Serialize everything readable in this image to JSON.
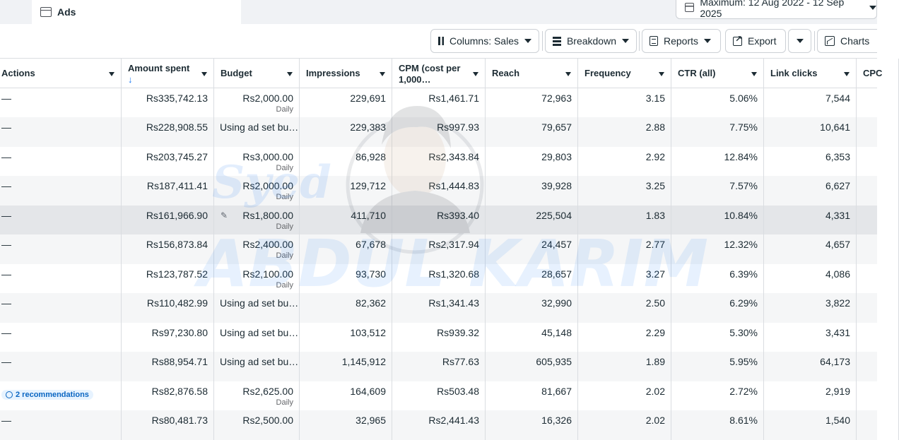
{
  "tab": {
    "label": "Ads"
  },
  "date_range": {
    "label": "Maximum: 12 Aug 2022 - 12 Sep 2025"
  },
  "toolbar": {
    "columns": "Columns: Sales",
    "breakdown": "Breakdown",
    "reports": "Reports",
    "export": "Export",
    "charts": "Charts"
  },
  "columns": [
    {
      "key": "actions",
      "label": "Actions"
    },
    {
      "key": "amount_spent",
      "label": "Amount spent",
      "sort": "↓"
    },
    {
      "key": "budget",
      "label": "Budget"
    },
    {
      "key": "impressions",
      "label": "Impressions"
    },
    {
      "key": "cpm",
      "label": "CPM (cost per",
      "label2": "1,000…"
    },
    {
      "key": "reach",
      "label": "Reach"
    },
    {
      "key": "frequency",
      "label": "Frequency"
    },
    {
      "key": "ctr",
      "label": "CTR (all)"
    },
    {
      "key": "link_clicks",
      "label": "Link clicks"
    },
    {
      "key": "cpc",
      "label": "CPC"
    }
  ],
  "rows": [
    {
      "actions": "—",
      "amount_spent": "Rs335,742.13",
      "budget": "Rs2,000.00",
      "budget_sub": "Daily",
      "impressions": "229,691",
      "cpm": "Rs1,461.71",
      "reach": "72,963",
      "frequency": "3.15",
      "ctr": "5.06%",
      "link_clicks": "7,544"
    },
    {
      "actions": "—",
      "amount_spent": "Rs228,908.55",
      "budget": "Using ad set bu…",
      "budget_sub": "",
      "impressions": "229,383",
      "cpm": "Rs997.93",
      "reach": "79,657",
      "frequency": "2.88",
      "ctr": "7.75%",
      "link_clicks": "10,641"
    },
    {
      "actions": "—",
      "amount_spent": "Rs203,745.27",
      "budget": "Rs3,000.00",
      "budget_sub": "Daily",
      "impressions": "86,928",
      "cpm": "Rs2,343.84",
      "reach": "29,803",
      "frequency": "2.92",
      "ctr": "12.84%",
      "link_clicks": "6,353"
    },
    {
      "actions": "—",
      "amount_spent": "Rs187,411.41",
      "budget": "Rs2,000.00",
      "budget_sub": "Daily",
      "impressions": "129,712",
      "cpm": "Rs1,444.83",
      "reach": "39,928",
      "frequency": "3.25",
      "ctr": "7.57%",
      "link_clicks": "6,627"
    },
    {
      "actions": "—",
      "amount_spent": "Rs161,966.90",
      "budget": "Rs1,800.00",
      "budget_sub": "Daily",
      "impressions": "411,710",
      "cpm": "Rs393.40",
      "reach": "225,504",
      "frequency": "1.83",
      "ctr": "10.84%",
      "link_clicks": "4,331"
    },
    {
      "actions": "—",
      "amount_spent": "Rs156,873.84",
      "budget": "Rs2,400.00",
      "budget_sub": "Daily",
      "impressions": "67,678",
      "cpm": "Rs2,317.94",
      "reach": "24,457",
      "frequency": "2.77",
      "ctr": "12.32%",
      "link_clicks": "4,657"
    },
    {
      "actions": "—",
      "amount_spent": "Rs123,787.52",
      "budget": "Rs2,100.00",
      "budget_sub": "Daily",
      "impressions": "93,730",
      "cpm": "Rs1,320.68",
      "reach": "28,657",
      "frequency": "3.27",
      "ctr": "6.39%",
      "link_clicks": "4,086"
    },
    {
      "actions": "—",
      "amount_spent": "Rs110,482.99",
      "budget": "Using ad set bu…",
      "budget_sub": "",
      "impressions": "82,362",
      "cpm": "Rs1,341.43",
      "reach": "32,990",
      "frequency": "2.50",
      "ctr": "6.29%",
      "link_clicks": "3,822"
    },
    {
      "actions": "—",
      "amount_spent": "Rs97,230.80",
      "budget": "Using ad set bu…",
      "budget_sub": "",
      "impressions": "103,512",
      "cpm": "Rs939.32",
      "reach": "45,148",
      "frequency": "2.29",
      "ctr": "5.30%",
      "link_clicks": "3,431"
    },
    {
      "actions": "—",
      "amount_spent": "Rs88,954.71",
      "budget": "Using ad set bu…",
      "budget_sub": "",
      "impressions": "1,145,912",
      "cpm": "Rs77.63",
      "reach": "605,935",
      "frequency": "1.89",
      "ctr": "5.95%",
      "link_clicks": "64,173"
    },
    {
      "actions": "2 recommendations",
      "amount_spent": "Rs82,876.58",
      "budget": "Rs2,625.00",
      "budget_sub": "Daily",
      "impressions": "164,609",
      "cpm": "Rs503.48",
      "reach": "81,667",
      "frequency": "2.02",
      "ctr": "2.72%",
      "link_clicks": "2,919"
    },
    {
      "actions": "—",
      "amount_spent": "Rs80,481.73",
      "budget": "Rs2,500.00",
      "budget_sub": "",
      "impressions": "32,965",
      "cpm": "Rs2,441.43",
      "reach": "16,326",
      "frequency": "2.02",
      "ctr": "8.61%",
      "link_clicks": "1,540"
    }
  ],
  "watermark": {
    "line1": "Syed",
    "line2": "ABDUL KARIM"
  },
  "icons": [
    "table-icon",
    "calendar-icon",
    "columns-icon",
    "breakdown-icon",
    "reports-icon",
    "export-icon",
    "chart-icon",
    "pencil-icon",
    "recommendation-icon"
  ]
}
